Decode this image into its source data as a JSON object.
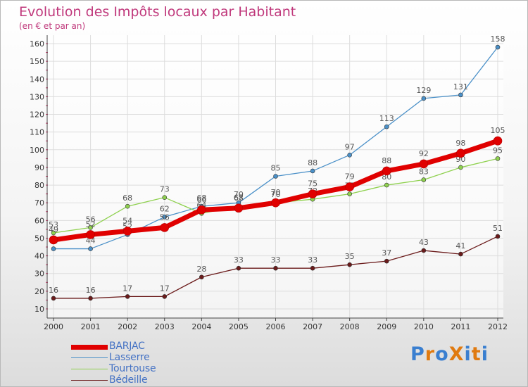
{
  "chart_data": {
    "type": "line",
    "title": "Evolution des Impôts locaux par Habitant",
    "subtitle": "(en € et par an)",
    "xlabel": "",
    "ylabel": "",
    "x": [
      "2000",
      "2001",
      "2002",
      "2003",
      "2004",
      "2005",
      "2006",
      "2007",
      "2008",
      "2009",
      "2010",
      "2011",
      "2012"
    ],
    "ylim": [
      10,
      160
    ],
    "yticks": [
      10,
      20,
      30,
      40,
      50,
      60,
      70,
      80,
      90,
      100,
      110,
      120,
      130,
      140,
      150,
      160
    ],
    "series": [
      {
        "name": "Lasserre",
        "color": "#4a90c8",
        "values": [
          44,
          44,
          52,
          62,
          68,
          70,
          85,
          88,
          97,
          113,
          129,
          131,
          158
        ]
      },
      {
        "name": "Tourtouse",
        "color": "#8fd14f",
        "values": [
          53,
          56,
          68,
          73,
          64,
          68,
          70,
          72,
          75,
          80,
          83,
          90,
          95
        ]
      },
      {
        "name": "Bédeille",
        "color": "#6b1b1b",
        "values": [
          16,
          16,
          17,
          17,
          28,
          33,
          33,
          33,
          35,
          37,
          43,
          41,
          51
        ]
      },
      {
        "name": "BARJAC",
        "color": "#e00000",
        "values": [
          49,
          52,
          54,
          56,
          66,
          67,
          70,
          75,
          79,
          88,
          92,
          98,
          105
        ]
      }
    ],
    "legend": [
      "BARJAC",
      "Lasserre",
      "Tourtouse",
      "Bédeille"
    ],
    "legend_position": "bottom-left",
    "grid": true
  },
  "brand": {
    "text": "ProXiti",
    "colors": [
      "#3a7fd0",
      "#e07a10",
      "#3a7fd0",
      "#e07a10",
      "#3a7fd0",
      "#e07a10",
      "#3a7fd0"
    ]
  }
}
